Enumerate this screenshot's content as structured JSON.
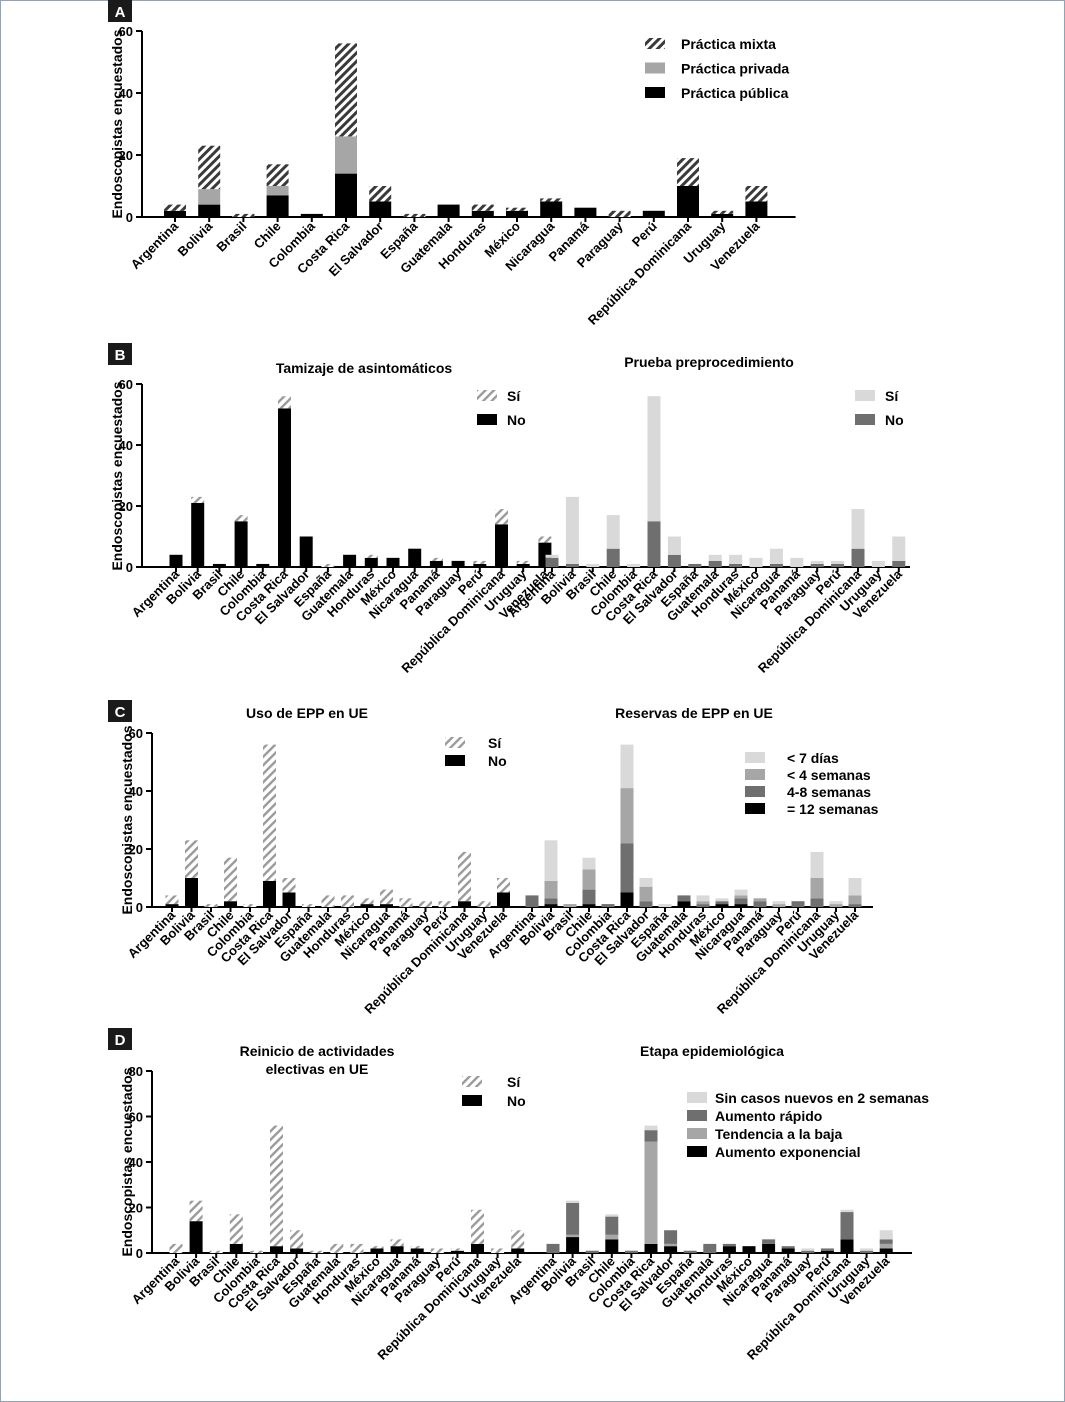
{
  "colors": {
    "black": "#000000",
    "gray_light": "#d9d9d9",
    "gray_mid": "#a6a6a6",
    "gray_dark": "#6f6f6f",
    "hatch": "#3a3a3a",
    "hatch_light": "#9a9a9a"
  },
  "countries": [
    "Argentina",
    "Bolivia",
    "Brasil",
    "Chile",
    "Colombia",
    "Costa Rica",
    "El Salvador",
    "España",
    "Guatemala",
    "Honduras",
    "México",
    "Nicaragua",
    "Panamá",
    "Paraguay",
    "Perú",
    "República Dominicana",
    "Uruguay",
    "Venezuela"
  ],
  "y_axis_label": "Endoscopistas encuestados",
  "chart_data": [
    {
      "panel": "A",
      "type": "bar",
      "stacked": true,
      "title": "",
      "ylabel": "Endoscopistas encuestados",
      "ylim": [
        0,
        60
      ],
      "yticks": [
        0,
        20,
        40,
        60
      ],
      "series": [
        {
          "name": "Práctica pública",
          "style": "black",
          "values": [
            2,
            4,
            0,
            7,
            1,
            14,
            5,
            0,
            4,
            2,
            2,
            5,
            3,
            0,
            2,
            10,
            1,
            5
          ]
        },
        {
          "name": "Práctica privada",
          "style": "gray_mid",
          "values": [
            0,
            5,
            0,
            3,
            0,
            12,
            0,
            0,
            0,
            0,
            0,
            0,
            0,
            0,
            0,
            0,
            0,
            0
          ]
        },
        {
          "name": "Práctica mixta",
          "style": "hatch",
          "values": [
            2,
            14,
            1,
            7,
            0,
            30,
            5,
            1,
            0,
            2,
            1,
            1,
            0,
            2,
            0,
            9,
            1,
            5
          ]
        }
      ],
      "legend": [
        "Práctica mixta",
        "Práctica privada",
        "Práctica pública"
      ]
    },
    {
      "panel": "B",
      "type": "bar",
      "stacked": true,
      "title": "Tamizaje de asintomáticos",
      "ylabel": "Endoscopistas encuestados",
      "ylim": [
        0,
        60
      ],
      "yticks": [
        0,
        20,
        40,
        60
      ],
      "series": [
        {
          "name": "No",
          "style": "black",
          "values": [
            4,
            21,
            1,
            15,
            1,
            52,
            10,
            0,
            4,
            3,
            3,
            6,
            2,
            2,
            1,
            14,
            1,
            8
          ]
        },
        {
          "name": "Sí",
          "style": "hatch_light",
          "values": [
            0,
            2,
            0,
            2,
            0,
            4,
            0,
            1,
            0,
            1,
            0,
            0,
            1,
            0,
            1,
            5,
            1,
            2
          ]
        }
      ],
      "legend": [
        "Sí",
        "No"
      ]
    },
    {
      "panel": "B",
      "type": "bar",
      "stacked": true,
      "title": "Prueba preprocedimiento",
      "ylabel": "",
      "ylim": [
        0,
        60
      ],
      "series": [
        {
          "name": "No",
          "style": "gray_dark",
          "values": [
            3,
            1,
            0,
            6,
            0,
            15,
            4,
            1,
            2,
            1,
            0,
            1,
            0,
            1,
            1,
            6,
            0,
            2
          ]
        },
        {
          "name": "Sí",
          "style": "gray_light",
          "values": [
            1,
            22,
            1,
            11,
            1,
            41,
            6,
            0,
            2,
            3,
            3,
            5,
            3,
            1,
            1,
            13,
            2,
            8
          ]
        }
      ],
      "legend": [
        "Sí",
        "No"
      ]
    },
    {
      "panel": "C",
      "type": "bar",
      "stacked": true,
      "title": "Uso de EPP en UE",
      "ylabel": "Endoscopistas encuestados",
      "ylim": [
        0,
        60
      ],
      "yticks": [
        0,
        20,
        40,
        60
      ],
      "series": [
        {
          "name": "No",
          "style": "black",
          "values": [
            1,
            10,
            0,
            2,
            0,
            9,
            5,
            0,
            0,
            0,
            1,
            1,
            0,
            0,
            0,
            2,
            0,
            5
          ]
        },
        {
          "name": "Sí",
          "style": "hatch_light",
          "values": [
            3,
            13,
            1,
            15,
            1,
            47,
            5,
            1,
            4,
            4,
            2,
            5,
            3,
            2,
            2,
            17,
            2,
            5
          ]
        }
      ],
      "legend": [
        "Sí",
        "No"
      ]
    },
    {
      "panel": "C",
      "type": "bar",
      "stacked": true,
      "title": "Reservas de EPP en UE",
      "ylabel": "",
      "ylim": [
        0,
        60
      ],
      "series": [
        {
          "name": "= 12 semanas",
          "style": "black",
          "values": [
            0,
            1,
            0,
            1,
            0,
            5,
            0,
            0,
            2,
            0,
            1,
            1,
            0,
            0,
            0,
            0,
            0,
            0
          ]
        },
        {
          "name": "4-8 semanas",
          "style": "gray_dark",
          "values": [
            4,
            2,
            0,
            5,
            1,
            17,
            2,
            0,
            2,
            1,
            1,
            2,
            2,
            0,
            2,
            3,
            0,
            1
          ]
        },
        {
          "name": "< 4 semanas",
          "style": "gray_mid",
          "values": [
            0,
            6,
            1,
            7,
            0,
            19,
            5,
            0,
            0,
            1,
            0,
            1,
            1,
            1,
            0,
            7,
            1,
            3
          ]
        },
        {
          "name": "< 7 días",
          "style": "gray_light",
          "values": [
            0,
            14,
            0,
            4,
            0,
            15,
            3,
            1,
            0,
            2,
            1,
            2,
            0,
            1,
            0,
            9,
            1,
            6
          ]
        }
      ],
      "legend": [
        "< 7 días",
        "< 4 semanas",
        "4-8 semanas",
        "= 12 semanas"
      ]
    },
    {
      "panel": "D",
      "type": "bar",
      "stacked": true,
      "title": "Reinicio de actividades electivas en UE",
      "title_lines": [
        "Reinicio de actividades",
        "electivas en UE"
      ],
      "ylabel": "Endoscopistas encuestados",
      "ylim": [
        0,
        80
      ],
      "yticks": [
        0,
        20,
        40,
        60,
        80
      ],
      "series": [
        {
          "name": "No",
          "style": "black",
          "values": [
            0,
            14,
            0,
            4,
            0,
            3,
            2,
            0,
            0,
            0,
            2,
            3,
            2,
            0,
            1,
            4,
            0,
            2
          ]
        },
        {
          "name": "Sí",
          "style": "hatch_light",
          "values": [
            4,
            9,
            1,
            13,
            1,
            53,
            8,
            1,
            4,
            4,
            1,
            3,
            1,
            2,
            1,
            15,
            2,
            8
          ]
        }
      ],
      "legend": [
        "Sí",
        "No"
      ]
    },
    {
      "panel": "D",
      "type": "bar",
      "stacked": true,
      "title": "Etapa epidemiológica",
      "ylabel": "",
      "ylim": [
        0,
        80
      ],
      "series": [
        {
          "name": "Aumento exponencial",
          "style": "black",
          "values": [
            0,
            7,
            0,
            6,
            0,
            4,
            3,
            0,
            0,
            3,
            3,
            4,
            2,
            0,
            1,
            6,
            0,
            2
          ]
        },
        {
          "name": "Tendencia a la baja",
          "style": "gray_mid",
          "values": [
            0,
            1,
            0,
            2,
            0,
            45,
            1,
            0,
            0,
            0,
            0,
            0,
            0,
            0,
            0,
            0,
            0,
            2
          ]
        },
        {
          "name": "Aumento rápido",
          "style": "gray_dark",
          "values": [
            4,
            14,
            1,
            8,
            1,
            5,
            6,
            1,
            4,
            1,
            0,
            2,
            1,
            1,
            1,
            12,
            1,
            2
          ]
        },
        {
          "name": "Sin casos nuevos en 2 semanas",
          "style": "gray_light",
          "values": [
            0,
            1,
            0,
            1,
            0,
            2,
            0,
            0,
            0,
            0,
            0,
            0,
            0,
            1,
            0,
            1,
            1,
            4
          ]
        }
      ],
      "legend": [
        "Sin casos nuevos en 2 semanas",
        "Aumento rápido",
        "Tendencia a la baja",
        "Aumento exponencial"
      ]
    }
  ],
  "panel_labels": [
    "A",
    "B",
    "C",
    "D"
  ]
}
